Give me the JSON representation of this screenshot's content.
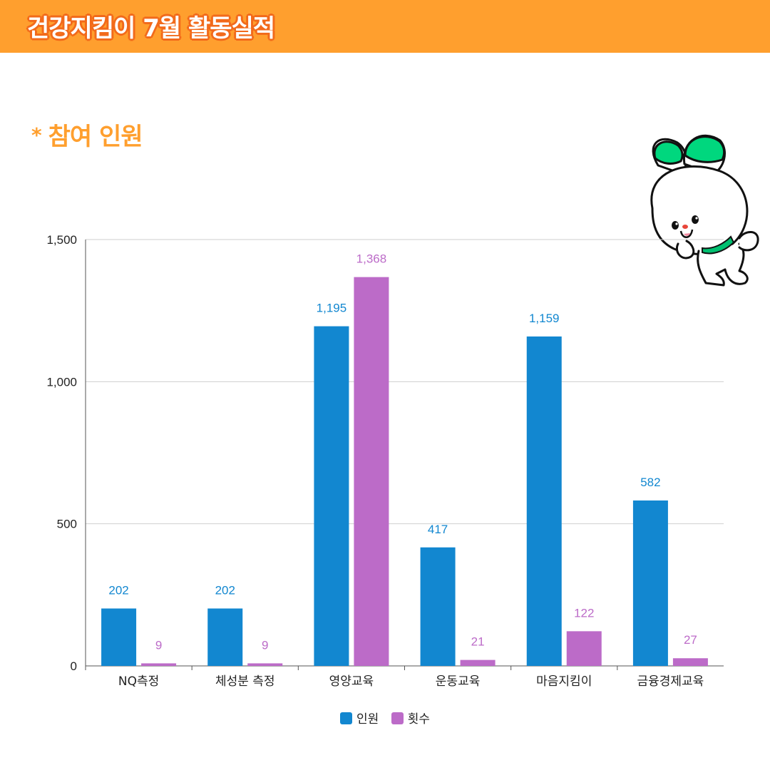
{
  "header": {
    "title": "건강지킴이 7월 활동실적"
  },
  "section": {
    "star": "*",
    "title": "참여 인원"
  },
  "colors": {
    "header_bg": "#FF9F2E",
    "series1": "#1287D0",
    "series2": "#BC6BC8"
  },
  "chart_data": {
    "type": "bar",
    "categories": [
      "NQ측정",
      "체성분 측정",
      "영양교육",
      "운동교육",
      "마음지킴이",
      "금융경제교육"
    ],
    "series": [
      {
        "name": "인원",
        "values": [
          202,
          202,
          1195,
          417,
          1159,
          582
        ],
        "labels": [
          "202",
          "202",
          "1,195",
          "417",
          "1,159",
          "582"
        ]
      },
      {
        "name": "횟수",
        "values": [
          9,
          9,
          1368,
          21,
          122,
          27
        ],
        "labels": [
          "9",
          "9",
          "1,368",
          "21",
          "122",
          "27"
        ]
      }
    ],
    "ylim": [
      0,
      1500
    ],
    "yticks": [
      0,
      500,
      1000,
      1500
    ],
    "ytick_labels": [
      "0",
      "500",
      "1,000",
      "1,500"
    ],
    "legend_position": "bottom-center",
    "grid": true
  }
}
